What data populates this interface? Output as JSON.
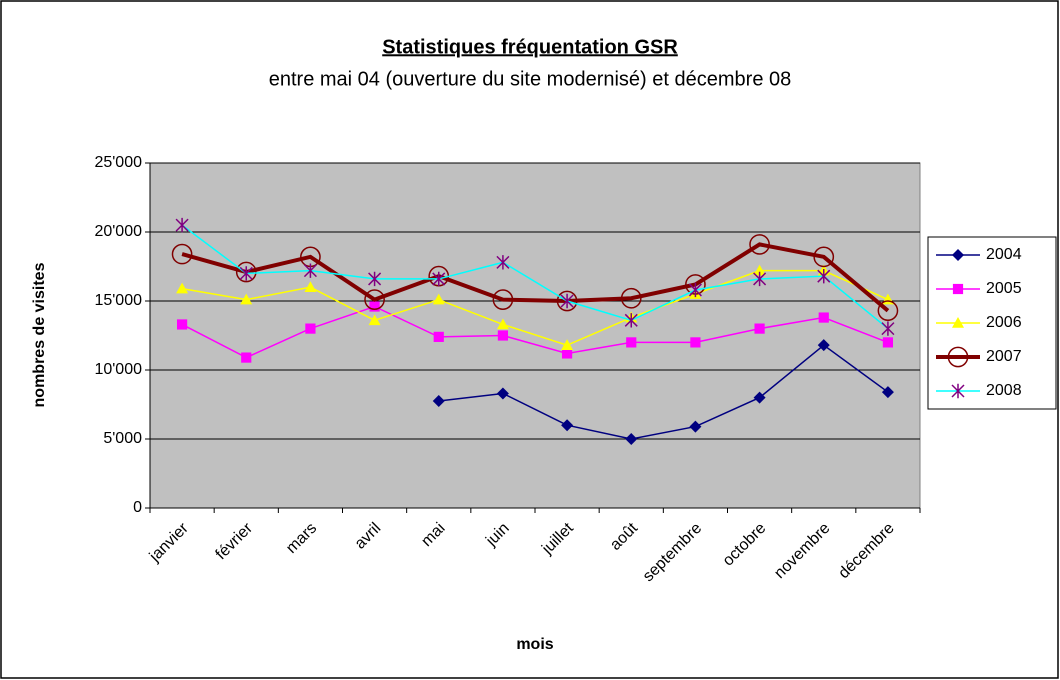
{
  "chart_data": {
    "type": "line",
    "title": "Statistiques fréquentation GSR",
    "subtitle": "entre mai 04 (ouverture du site modernisé) et décembre 08",
    "x_label": "mois",
    "y_label": "nombres de visites",
    "categories": [
      "janvier",
      "février",
      "mars",
      "avril",
      "mai",
      "juin",
      "juillet",
      "août",
      "septembre",
      "octobre",
      "novembre",
      "décembre"
    ],
    "series": [
      {
        "name": "2004",
        "color": "#000080",
        "marker_color": "#000080",
        "marker": "diamond",
        "line_width": 1.5,
        "values": [
          null,
          null,
          null,
          null,
          7750,
          8300,
          6000,
          5000,
          5900,
          8000,
          11800,
          8400
        ]
      },
      {
        "name": "2005",
        "color": "#ff00ff",
        "marker_color": "#ff00ff",
        "marker": "square",
        "line_width": 1.5,
        "values": [
          13300,
          10900,
          13000,
          14600,
          12400,
          12500,
          11200,
          12000,
          12000,
          13000,
          13800,
          12000
        ]
      },
      {
        "name": "2006",
        "color": "#ffff00",
        "marker_color": "#ffff00",
        "marker": "triangle",
        "line_width": 1.5,
        "values": [
          15900,
          15100,
          16000,
          13600,
          15100,
          13300,
          11800,
          13800,
          15500,
          17200,
          17200,
          15100
        ]
      },
      {
        "name": "2007",
        "color": "#800000",
        "marker_color": "#800000",
        "marker": "circle",
        "line_width": 4,
        "values": [
          18400,
          17100,
          18200,
          15100,
          16800,
          15100,
          15000,
          15200,
          16200,
          19100,
          18200,
          14300
        ]
      },
      {
        "name": "2008",
        "color": "#00ffff",
        "marker_color": "#800080",
        "marker": "star",
        "line_width": 1.5,
        "values": [
          20500,
          17000,
          17200,
          16600,
          16600,
          17800,
          15000,
          13600,
          15800,
          16600,
          16800,
          13000
        ]
      }
    ],
    "ylim": [
      0,
      25000
    ],
    "yticks": [
      0,
      {
        "value": 5000,
        "label": "5'000"
      },
      {
        "value": 10000,
        "label": "10'000"
      },
      {
        "value": 15000,
        "label": "15'000"
      },
      {
        "value": 20000,
        "label": "20'000"
      },
      {
        "value": 25000,
        "label": "25'000"
      }
    ],
    "grid": true,
    "plot_background": "#c0c0c0",
    "legend": "right"
  }
}
